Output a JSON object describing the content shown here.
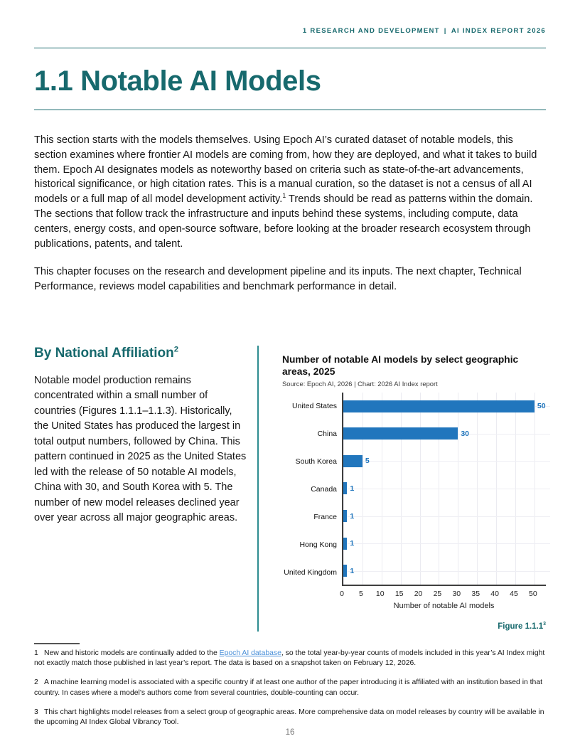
{
  "page": {
    "running_head": "1 RESEARCH AND DEVELOPMENT | AI INDEX REPORT 2026",
    "title": "1.1 Notable AI Models",
    "page_number": "16"
  },
  "intro": {
    "p1_before": "This section starts with the models themselves. Using Epoch AI’s curated dataset of notable models, this section examines where frontier AI models are coming from, how they are deployed, and what it takes to build them. Epoch AI designates models as noteworthy based on criteria such as state-of-the-art advancements, historical significance, or high citation rates. This is a manual curation, so the dataset is not a census of all AI models or a full map of all model development activity.",
    "p1_sup": "1",
    "p1_after": " Trends should be read as patterns within the domain. The sections that follow track the infrastructure and inputs behind these systems, including compute, data centers, energy costs, and open-source software, before looking at the broader research ecosystem through publications, patents, and talent.",
    "p2": "This chapter focuses on the research and development pipeline and its inputs. The next chapter, Technical Performance, reviews model capabilities and benchmark performance in detail."
  },
  "section": {
    "heading": "By National Affiliation",
    "heading_sup": "2",
    "body": "Notable model production remains concentrated within a small number of countries (Figures 1.1.1–1.1.3). Historically, the United States has produced the largest in total output numbers, followed by China. This pattern continued in 2025 as the United States led with the release of 50 notable AI models, China with 30, and South Korea with 5. The number of new model releases declined year over year across all major geographic areas."
  },
  "figure": {
    "caption": "Figure 1.1.1",
    "caption_sup": "3"
  },
  "chart_data": {
    "type": "bar",
    "orientation": "horizontal",
    "title": "Number of notable AI models by select geographic areas, 2025",
    "source": "Source: Epoch AI, 2026 | Chart: 2026 AI Index report",
    "xlabel": "Number of notable AI models",
    "categories": [
      "United States",
      "China",
      "South Korea",
      "Canada",
      "France",
      "Hong Kong",
      "United Kingdom"
    ],
    "values": [
      50,
      30,
      5,
      1,
      1,
      1,
      1
    ],
    "xticks": [
      0,
      5,
      10,
      15,
      20,
      25,
      30,
      35,
      40,
      45,
      50
    ],
    "xlim": [
      0,
      53
    ],
    "grid": true,
    "value_labels": true,
    "legend": "none",
    "bar_color": "#2176bd"
  },
  "footnotes": [
    {
      "num": "1",
      "before_link": "New and historic models are continually added to the ",
      "link": "Epoch AI database",
      "after_link": ", so the total year-by-year counts of models included in this year’s AI Index might not exactly match those published in last year’s report. The data is based on a snapshot taken on February 12, 2026."
    },
    {
      "num": "2",
      "text": "A machine learning model is associated with a specific country if at least one author of the paper introducing it is affiliated with an institution based in that country. In cases where a model’s authors come from several countries, double-counting can occur."
    },
    {
      "num": "3",
      "text": "This chart highlights model releases from a select group of geographic areas. More comprehensive data on model releases by country will be available in the upcoming AI Index Global Vibrancy Tool."
    }
  ],
  "colors": {
    "teal": "#17696d",
    "divider_teal": "#2e8c90",
    "bar_blue": "#2176bd",
    "link_blue": "#4a90d9"
  }
}
